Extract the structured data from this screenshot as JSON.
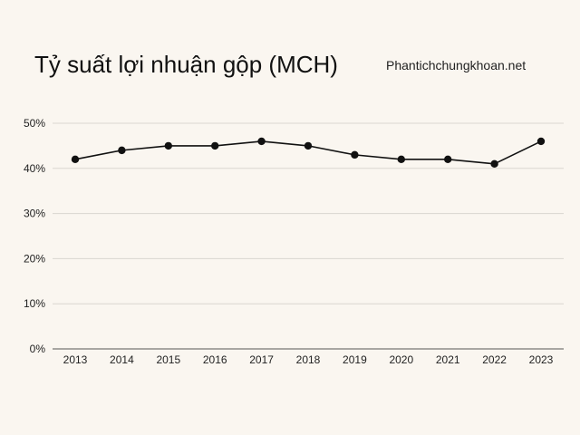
{
  "header": {
    "title": "Tỷ suất lợi nhuận gộp (MCH)",
    "watermark": "Phantichchungkhoan.net"
  },
  "colors": {
    "background": "#faf6f0",
    "line": "#111111",
    "marker": "#111111",
    "grid": "#d9d6d0",
    "axis": "#555555"
  },
  "chart_data": {
    "type": "line",
    "title": "Tỷ suất lợi nhuận gộp (MCH)",
    "xlabel": "",
    "ylabel": "",
    "categories": [
      "2013",
      "2014",
      "2015",
      "2016",
      "2017",
      "2018",
      "2019",
      "2020",
      "2021",
      "2022",
      "2023"
    ],
    "series": [
      {
        "values": [
          42,
          44,
          45,
          45,
          46,
          45,
          43,
          42,
          42,
          41,
          46
        ]
      }
    ],
    "ylim": [
      0,
      50
    ],
    "yticks": [
      0,
      10,
      20,
      30,
      40,
      50
    ],
    "ytick_labels": [
      "0%",
      "10%",
      "20%",
      "30%",
      "40%",
      "50%"
    ],
    "grid": true,
    "legend": "none",
    "markers": true
  }
}
